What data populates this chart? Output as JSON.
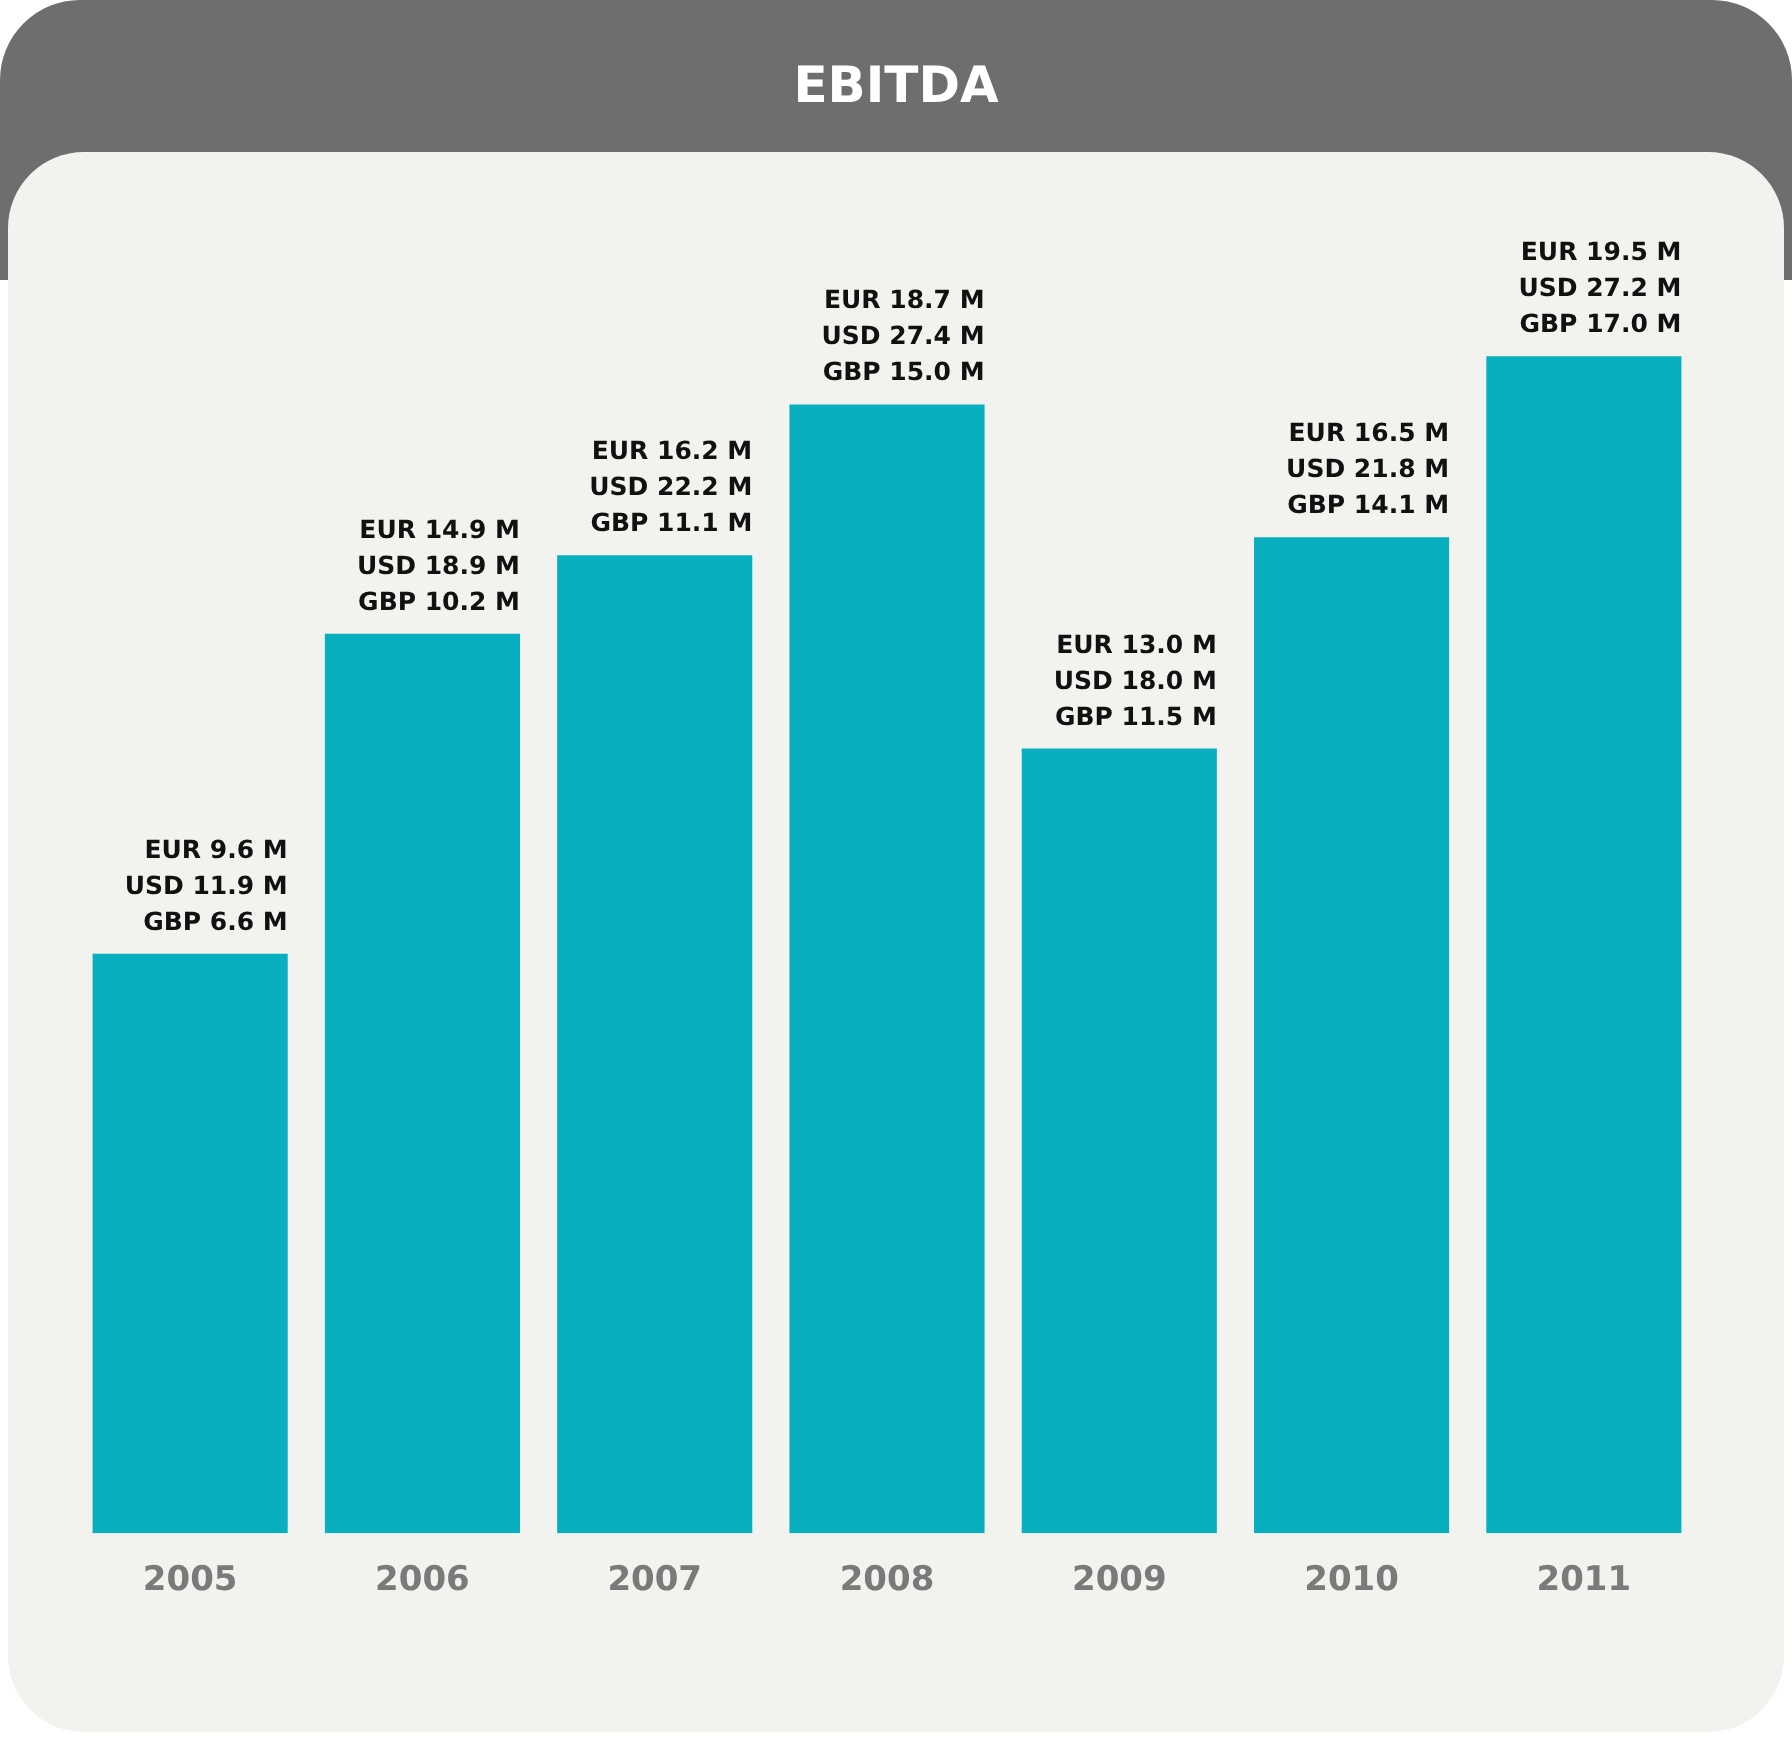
{
  "chart_data": {
    "type": "bar",
    "title": "EBITDA",
    "categories": [
      "2005",
      "2006",
      "2007",
      "2008",
      "2009",
      "2010",
      "2011"
    ],
    "values": [
      9.6,
      14.9,
      16.2,
      18.7,
      13.0,
      16.5,
      19.5
    ],
    "value_labels": [
      "EUR 9.6 M\nUSD 11.9 M\nGBP 6.6 M",
      "EUR 14.9 M\nUSD 18.9 M\nGBP 10.2 M",
      "EUR 16.2 M\nUSD 22.2 M\nGBP 11.1 M",
      "EUR 18.7 M\nUSD 27.4 M\nGBP 15.0 M",
      "EUR 13.0 M\nUSD 18.0 M\nGBP 11.5 M",
      "EUR 16.5 M\nUSD 21.8 M\nGBP 14.1 M",
      "EUR 19.5 M\nUSD 27.2 M\nGBP 17.0 M"
    ],
    "color": "#08afbe",
    "grid": false,
    "legend": false,
    "tick_labels": "x"
  }
}
